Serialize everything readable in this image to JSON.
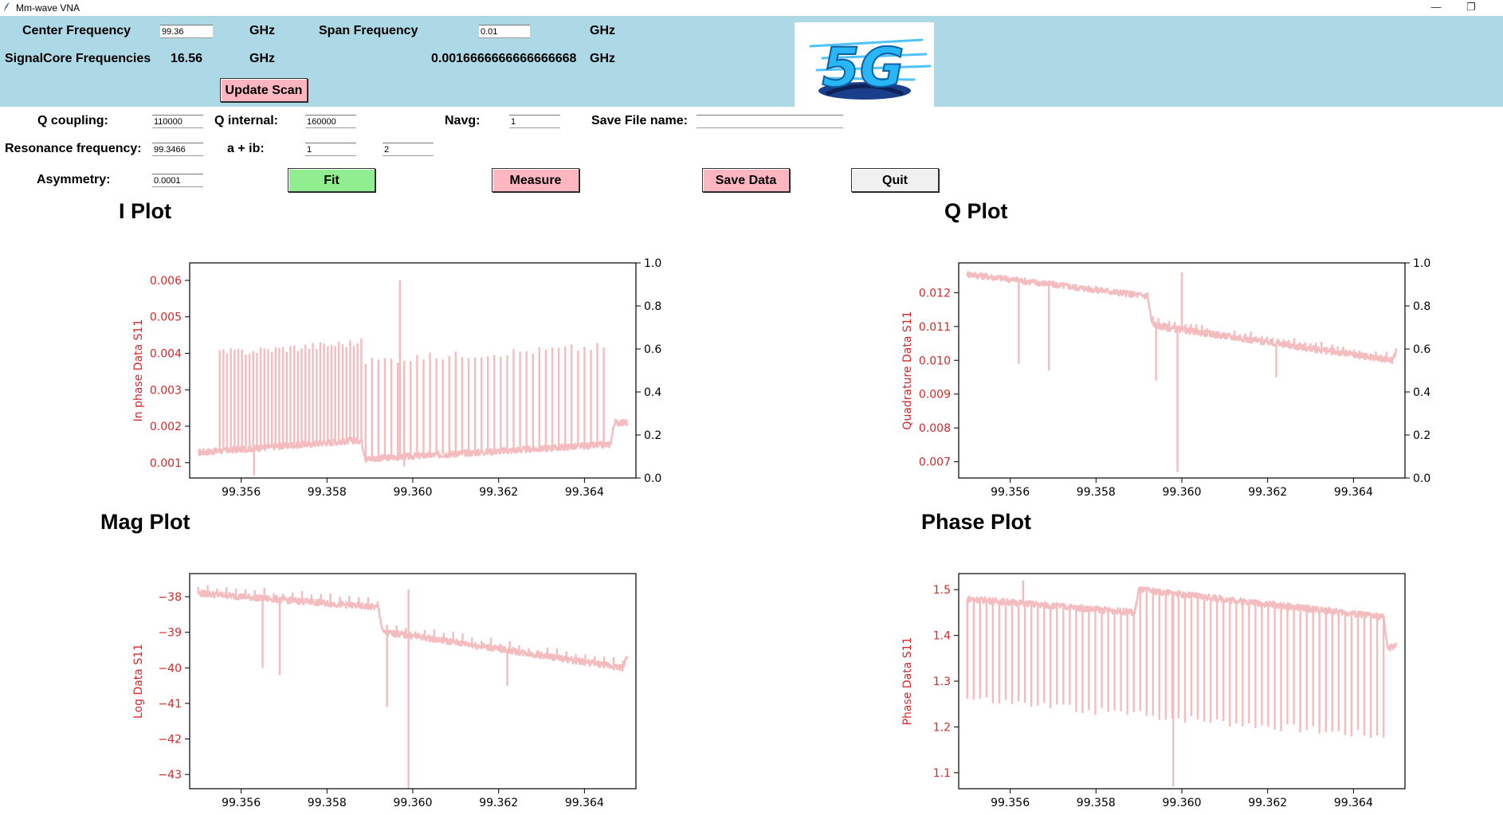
{
  "window": {
    "title": "Mm-wave VNA",
    "minimize_glyph": "—",
    "restore_glyph": "❐"
  },
  "scan": {
    "center_frequency_label": "Center Frequency",
    "center_frequency_value": "99.36",
    "center_unit": "GHz",
    "span_frequency_label": "Span Frequency",
    "span_frequency_value": "0.01",
    "span_unit": "GHz",
    "signalcore_label": "SignalCore Frequencies",
    "signalcore_value": "16.56",
    "signalcore_unit": "GHz",
    "step_value": "0.0016666666666666668",
    "step_unit": "GHz",
    "update_button": "Update Scan"
  },
  "logo": {
    "text": "5G"
  },
  "fit": {
    "q_coupling_label": "Q coupling:",
    "q_coupling_value": "110000",
    "q_internal_label": "Q internal:",
    "q_internal_value": "160000",
    "navg_label": "Navg:",
    "navg_value": "1",
    "save_file_label": "Save File name:",
    "save_file_value": "",
    "resonance_label": "Resonance frequency:",
    "resonance_value": "99.3466",
    "aib_label": "a + ib:",
    "a_value": "1",
    "b_value": "2",
    "asymmetry_label": "Asymmetry:",
    "asymmetry_value": "0.0001"
  },
  "buttons": {
    "fit": "Fit",
    "measure": "Measure",
    "save": "Save Data",
    "quit": "Quit"
  },
  "colors": {
    "band": "#add8e6",
    "line": "#f4bcbf",
    "axis_label": "#d62728",
    "fit_btn": "#90ee90",
    "pink_btn": "#ffb6c1",
    "quit_btn": "#f0f0f0"
  },
  "chart_data": [
    {
      "type": "line",
      "title": "I Plot",
      "ylabel": "In phase Data S11",
      "xlim": [
        99.3548,
        99.3652
      ],
      "ylim": [
        0.00058,
        0.00648
      ],
      "xticks": [
        "99.356",
        "99.358",
        "99.360",
        "99.362",
        "99.364"
      ],
      "yticks": [
        "0.001",
        "0.002",
        "0.003",
        "0.004",
        "0.005",
        "0.006"
      ],
      "right_ticks": [
        "0.0",
        "0.2",
        "0.4",
        "0.6",
        "0.8",
        "1.0"
      ],
      "baseline": [
        [
          99.355,
          0.00128
        ],
        [
          99.3588,
          0.00162
        ],
        [
          99.3589,
          0.0011
        ],
        [
          99.3646,
          0.0015
        ],
        [
          99.3647,
          0.0021
        ],
        [
          99.365,
          0.0021
        ]
      ],
      "spikes": [
        [
          99.3555,
          99.3588,
          0.004,
          0.0043
        ],
        [
          99.3589,
          99.3646,
          0.0038,
          0.0042
        ],
        [
          99.3597,
          99.3597,
          0.006,
          0.006
        ]
      ],
      "dips": [
        [
          99.3563,
          0.00065
        ],
        [
          99.3598,
          0.0009
        ]
      ]
    },
    {
      "type": "line",
      "title": "Q Plot",
      "ylabel": "Quadrature Data S11",
      "xlim": [
        99.3548,
        99.3652
      ],
      "ylim": [
        0.00652,
        0.01288
      ],
      "xticks": [
        "99.356",
        "99.358",
        "99.360",
        "99.362",
        "99.364"
      ],
      "yticks": [
        "0.007",
        "0.008",
        "0.009",
        "0.010",
        "0.011",
        "0.012"
      ],
      "right_ticks": [
        "0.0",
        "0.2",
        "0.4",
        "0.6",
        "0.8",
        "1.0"
      ],
      "baseline": [
        [
          99.355,
          0.01255
        ],
        [
          99.3592,
          0.0119
        ],
        [
          99.3593,
          0.0111
        ],
        [
          99.3595,
          0.011
        ],
        [
          99.36,
          0.0109
        ],
        [
          99.3649,
          0.01
        ],
        [
          99.365,
          0.0103
        ]
      ],
      "spikes": [
        [
          99.3592,
          99.3649,
          0.00025,
          0.00025
        ],
        [
          99.36,
          99.3601,
          0.0126,
          0.0126
        ]
      ],
      "dips": [
        [
          99.3562,
          0.0099
        ],
        [
          99.3569,
          0.0097
        ],
        [
          99.3594,
          0.0094
        ],
        [
          99.3599,
          0.0067
        ],
        [
          99.3622,
          0.0095
        ]
      ]
    },
    {
      "type": "line",
      "title": "Mag Plot",
      "ylabel": "Log Data S11",
      "xlim": [
        99.3548,
        99.3652
      ],
      "ylim": [
        -43.4,
        -37.35
      ],
      "xticks": [
        "99.356",
        "99.358",
        "99.360",
        "99.362",
        "99.364"
      ],
      "yticks": [
        "−38",
        "−39",
        "−40",
        "−41",
        "−42",
        "−43"
      ],
      "baseline": [
        [
          99.355,
          -37.9
        ],
        [
          99.3592,
          -38.3
        ],
        [
          99.3593,
          -39.0
        ],
        [
          99.36,
          -39.1
        ],
        [
          99.3649,
          -40.0
        ],
        [
          99.365,
          -39.6
        ]
      ],
      "spikes": [
        [
          99.355,
          99.3649,
          0.3,
          0.3
        ],
        [
          99.3599,
          99.36,
          -37.8,
          -37.8
        ]
      ],
      "dips": [
        [
          99.3565,
          -40.0
        ],
        [
          99.3569,
          -40.2
        ],
        [
          99.3594,
          -41.1
        ],
        [
          99.3599,
          -43.4
        ],
        [
          99.3622,
          -40.5
        ]
      ]
    },
    {
      "type": "line",
      "title": "Phase Plot",
      "ylabel": "Phase Data S11",
      "xlim": [
        99.3548,
        99.3652
      ],
      "ylim": [
        1.065,
        1.535
      ],
      "xticks": [
        "99.356",
        "99.358",
        "99.360",
        "99.362",
        "99.364"
      ],
      "yticks": [
        "1.1",
        "1.2",
        "1.3",
        "1.4",
        "1.5"
      ],
      "baseline": [
        [
          99.355,
          1.48
        ],
        [
          99.3589,
          1.45
        ],
        [
          99.359,
          1.5
        ],
        [
          99.3647,
          1.44
        ],
        [
          99.3648,
          1.37
        ],
        [
          99.365,
          1.38
        ]
      ],
      "spikes": [
        [
          99.355,
          99.3647,
          1.26,
          1.18
        ]
      ],
      "dips": [
        [
          99.3598,
          1.07
        ],
        [
          99.3563,
          1.52
        ]
      ]
    }
  ]
}
